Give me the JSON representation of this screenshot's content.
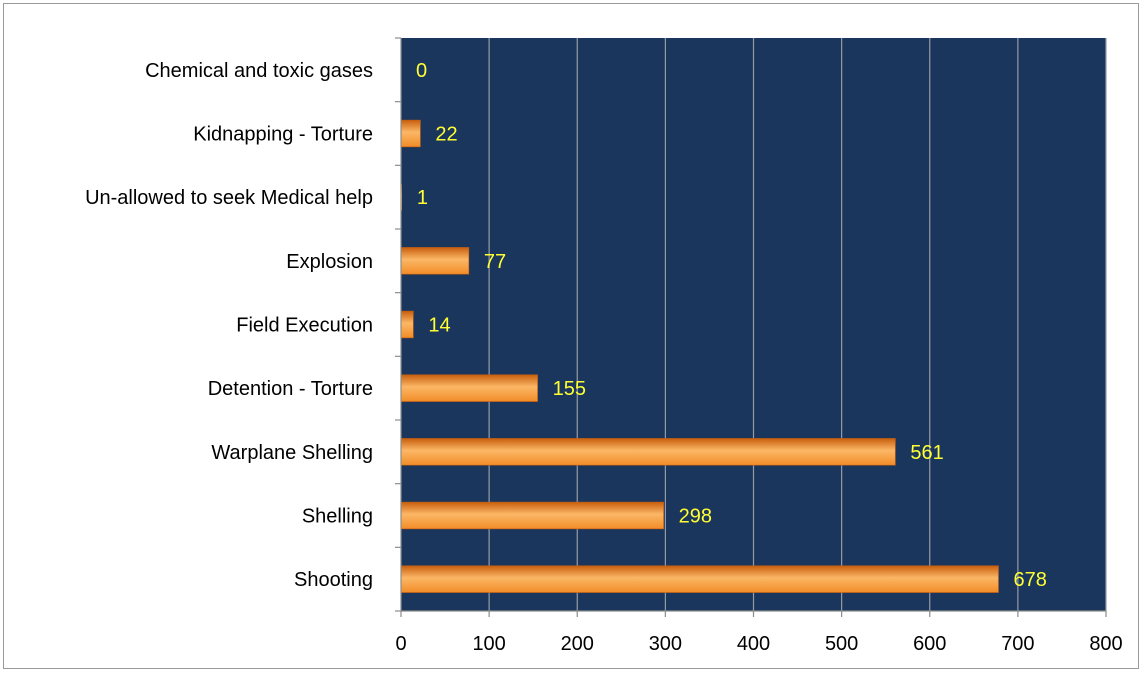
{
  "chart_data": {
    "type": "bar",
    "orientation": "horizontal",
    "categories": [
      "Shooting",
      "Shelling",
      "Warplane Shelling",
      "Detention - Torture",
      "Field Execution",
      "Explosion",
      "Un-allowed to seek Medical help",
      "Kidnapping - Torture",
      "Chemical and toxic gases"
    ],
    "values": [
      678,
      298,
      561,
      155,
      14,
      77,
      1,
      22,
      0
    ],
    "xlim": [
      0,
      800
    ],
    "x_ticks": [
      0,
      100,
      200,
      300,
      400,
      500,
      600,
      700,
      800
    ],
    "x_tick_labels": [
      "0",
      "100",
      "200",
      "300",
      "400",
      "500",
      "600",
      "700",
      "800"
    ],
    "grid": "vertical",
    "legend": "none",
    "colors": {
      "plot_background": "#1a365d",
      "bar_fill": "#f28c28",
      "bar_highlight": "#fbb766",
      "bar_shadow": "#c85f0e",
      "data_label": "#ffff33",
      "grid": "#9a9aa6",
      "axis": "#8c8c8c"
    }
  }
}
